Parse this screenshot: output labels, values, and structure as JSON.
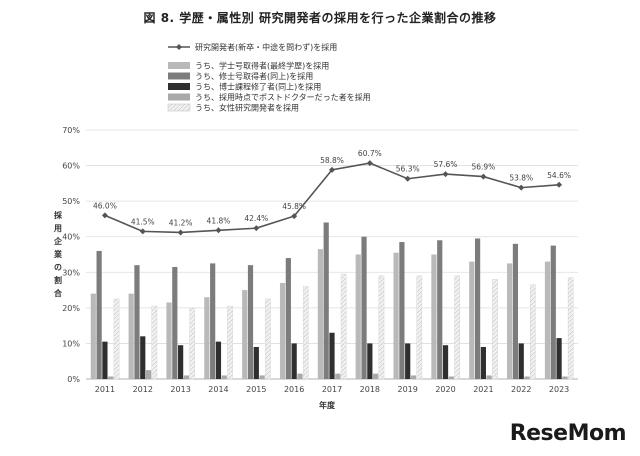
{
  "figure_title": "図 8. 学歴・属性別 研究開発者の採用を行った企業割合の推移",
  "watermark": "ReseMom",
  "colors": {
    "line": "#555555",
    "bachelor": "#b9b9b9",
    "master": "#7c7c7c",
    "phd": "#2f2f2f",
    "postdoc": "#a9a9a9",
    "female": "#e6e6e6",
    "grid": "#dddddd",
    "axis": "#999999"
  },
  "chart_data": {
    "type": "bar",
    "title": "",
    "xlabel": "年度",
    "ylabel": "採用企業の割合",
    "ylim": [
      0,
      70
    ],
    "yticks": [
      "0%",
      "10%",
      "20%",
      "30%",
      "40%",
      "50%",
      "60%",
      "70%"
    ],
    "categories": [
      "2011",
      "2012",
      "2013",
      "2014",
      "2015",
      "2016",
      "2017",
      "2018",
      "2019",
      "2020",
      "2021",
      "2022",
      "2023"
    ],
    "line_series": {
      "name": "研究開発者(新卒・中途を問わず)を採用",
      "values": [
        46.0,
        41.5,
        41.2,
        41.8,
        42.4,
        45.8,
        58.8,
        60.7,
        56.3,
        57.6,
        56.9,
        53.8,
        54.6
      ],
      "labels": [
        "46.0%",
        "41.5%",
        "41.2%",
        "41.8%",
        "42.4%",
        "45.8%",
        "58.8%",
        "60.7%",
        "56.3%",
        "57.6%",
        "56.9%",
        "53.8%",
        "54.6%"
      ]
    },
    "series": [
      {
        "name": "うち、学士号取得者(最終学歴)を採用",
        "key": "bachelor",
        "values": [
          24,
          24,
          21.5,
          23,
          25,
          27,
          36.5,
          35,
          35.5,
          35,
          33,
          32.5,
          33
        ]
      },
      {
        "name": "うち、修士号取得者(同上)を採用",
        "key": "master",
        "values": [
          36,
          32,
          31.5,
          32.5,
          32,
          34,
          44,
          40,
          38.5,
          39,
          39.5,
          38,
          37.5
        ]
      },
      {
        "name": "うち、博士課程修了者(同上)を採用",
        "key": "phd",
        "values": [
          10.5,
          12,
          9.5,
          10.5,
          9,
          10,
          13,
          10,
          10,
          9.5,
          9,
          10,
          11.5
        ]
      },
      {
        "name": "うち、採用時点でポストドクターだった者を採用",
        "key": "postdoc",
        "values": [
          0.7,
          2.5,
          1,
          1,
          1,
          1.5,
          1.5,
          1.5,
          1,
          0.7,
          1,
          0.7,
          0.7
        ]
      },
      {
        "name": "うち、女性研究開発者を採用",
        "key": "female",
        "values": [
          22.5,
          20.5,
          20,
          20.5,
          22.5,
          26,
          29.5,
          29,
          29,
          29,
          28,
          26.5,
          28.5
        ]
      }
    ],
    "legend_position": "top-left",
    "grid": true
  }
}
